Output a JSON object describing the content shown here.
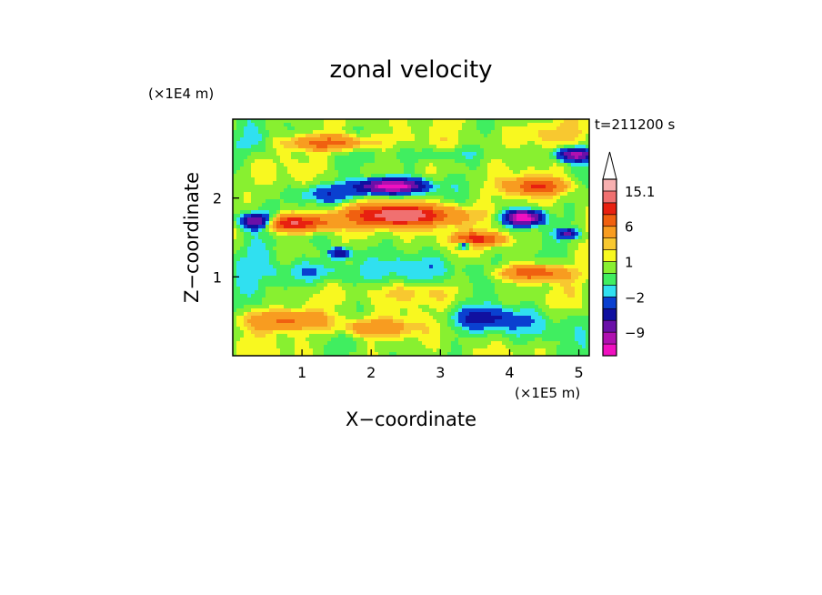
{
  "chart_data": {
    "type": "heatmap",
    "title": "zonal velocity",
    "xlabel": "X−coordinate",
    "ylabel": "Z−coordinate",
    "x_unit_label": "(×1E5 m)",
    "y_unit_label": "(×1E4 m)",
    "time_label": "t=211200 s",
    "xlim": [
      0,
      5.15
    ],
    "ylim": [
      0,
      3.0
    ],
    "x_ticks": [
      1,
      2,
      3,
      4,
      5
    ],
    "y_ticks": [
      1,
      2
    ],
    "x_tick_labels": [
      "1",
      "2",
      "3",
      "4",
      "5"
    ],
    "y_tick_labels": [
      "1",
      "2"
    ],
    "colorbar": {
      "colors": [
        "#f010c0",
        "#b010b0",
        "#6a10a8",
        "#1010a0",
        "#0a40d0",
        "#30e0f0",
        "#40ee60",
        "#88f030",
        "#f8f820",
        "#f8c830",
        "#f89c20",
        "#f06010",
        "#e82010",
        "#f07070",
        "#f8b0b0"
      ],
      "tick_labels": [
        "15.1",
        "6",
        "1",
        "−2",
        "−9"
      ],
      "tick_values": [
        15.1,
        6,
        1,
        -2,
        -9
      ],
      "extend_max": true
    },
    "features": [
      {
        "x": 0.85,
        "z": 1.68,
        "rx": 0.55,
        "rz": 0.1,
        "v": 12
      },
      {
        "x": 2.45,
        "z": 1.78,
        "rx": 0.75,
        "rz": 0.13,
        "v": 14
      },
      {
        "x": 3.55,
        "z": 1.48,
        "rx": 0.35,
        "rz": 0.08,
        "v": 9
      },
      {
        "x": 4.35,
        "z": 1.05,
        "rx": 0.45,
        "rz": 0.09,
        "v": 8
      },
      {
        "x": 1.4,
        "z": 2.7,
        "rx": 0.55,
        "rz": 0.09,
        "v": 7
      },
      {
        "x": 4.4,
        "z": 2.15,
        "rx": 0.4,
        "rz": 0.1,
        "v": 8
      },
      {
        "x": 0.8,
        "z": 0.45,
        "rx": 0.6,
        "rz": 0.12,
        "v": 6
      },
      {
        "x": 2.05,
        "z": 0.35,
        "rx": 0.5,
        "rz": 0.1,
        "v": 5
      },
      {
        "x": 2.3,
        "z": 2.15,
        "rx": 0.45,
        "rz": 0.09,
        "v": -14
      },
      {
        "x": 4.2,
        "z": 1.75,
        "rx": 0.25,
        "rz": 0.09,
        "v": -14
      },
      {
        "x": 0.35,
        "z": 1.7,
        "rx": 0.25,
        "rz": 0.1,
        "v": -13
      },
      {
        "x": 4.95,
        "z": 2.55,
        "rx": 0.25,
        "rz": 0.08,
        "v": -11
      },
      {
        "x": 4.85,
        "z": 1.55,
        "rx": 0.15,
        "rz": 0.06,
        "v": -7
      },
      {
        "x": 1.55,
        "z": 1.3,
        "rx": 0.15,
        "rz": 0.07,
        "v": -7
      },
      {
        "x": 3.35,
        "z": 1.4,
        "rx": 0.1,
        "rz": 0.05,
        "v": -7
      },
      {
        "x": 3.6,
        "z": 0.48,
        "rx": 0.45,
        "rz": 0.12,
        "v": -4
      },
      {
        "x": 1.4,
        "z": 2.05,
        "rx": 0.5,
        "rz": 0.12,
        "v": -4
      },
      {
        "x": 1.2,
        "z": 1.05,
        "rx": 0.6,
        "rz": 0.15,
        "v": -3
      },
      {
        "x": 3.0,
        "z": 2.55,
        "rx": 0.6,
        "rz": 0.1,
        "v": -2
      },
      {
        "x": 0.25,
        "z": 1.3,
        "rx": 0.4,
        "rz": 0.4,
        "v": -2
      },
      {
        "x": 4.2,
        "z": 0.4,
        "rx": 0.8,
        "rz": 0.2,
        "v": -2
      },
      {
        "x": 2.9,
        "z": 1.1,
        "rx": 1.0,
        "rz": 0.18,
        "v": -2
      },
      {
        "x": 0.3,
        "z": 2.7,
        "rx": 0.3,
        "rz": 0.2,
        "v": -2
      },
      {
        "x": 4.4,
        "z": 2.8,
        "rx": 0.6,
        "rz": 0.15,
        "v": 2
      },
      {
        "x": 2.6,
        "z": 0.8,
        "rx": 0.6,
        "rz": 0.12,
        "v": 2
      }
    ]
  }
}
